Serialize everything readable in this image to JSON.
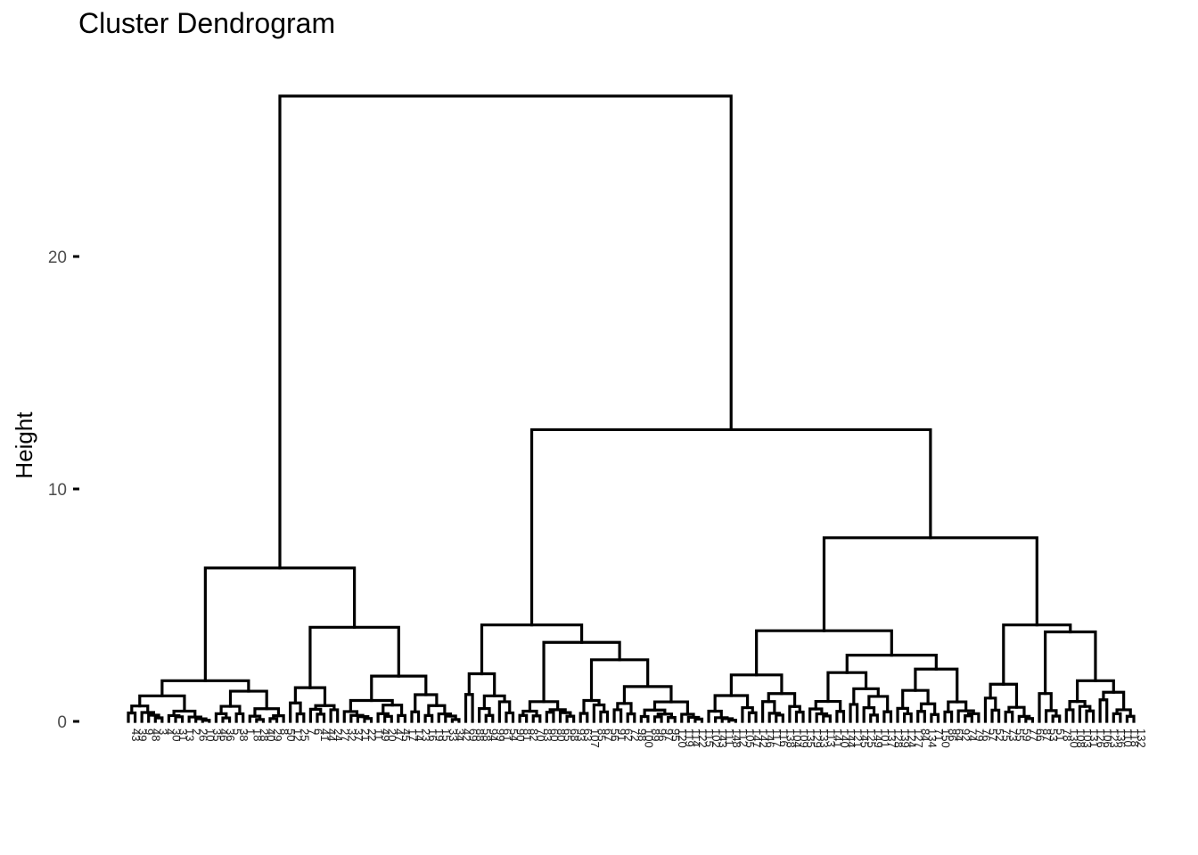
{
  "chart_data": {
    "type": "dendrogram",
    "title": "Cluster Dendrogram",
    "xlabel": "",
    "ylabel": "Height",
    "ylim": [
      0,
      27
    ],
    "yticks": [
      0,
      10,
      20
    ],
    "grid": false,
    "leaf_count": 150,
    "leaves": [
      43,
      39,
      9,
      48,
      3,
      4,
      30,
      31,
      13,
      2,
      26,
      10,
      35,
      46,
      36,
      5,
      38,
      1,
      18,
      28,
      40,
      29,
      8,
      50,
      12,
      25,
      7,
      6,
      41,
      44,
      24,
      27,
      32,
      37,
      21,
      22,
      11,
      49,
      20,
      47,
      45,
      17,
      14,
      23,
      16,
      19,
      15,
      33,
      34,
      42,
      69,
      88,
      58,
      94,
      99,
      61,
      54,
      90,
      81,
      82,
      70,
      83,
      60,
      80,
      65,
      68,
      93,
      63,
      107,
      85,
      67,
      56,
      91,
      62,
      72,
      98,
      100,
      89,
      96,
      97,
      95,
      120,
      119,
      114,
      122,
      115,
      102,
      143,
      111,
      148,
      112,
      105,
      147,
      142,
      146,
      117,
      116,
      138,
      104,
      109,
      135,
      129,
      133,
      113,
      141,
      140,
      144,
      121,
      145,
      125,
      149,
      101,
      137,
      128,
      139,
      124,
      127,
      84,
      134,
      71,
      150,
      86,
      64,
      92,
      74,
      79,
      76,
      57,
      52,
      75,
      73,
      55,
      59,
      77,
      66,
      87,
      53,
      51,
      78,
      130,
      108,
      103,
      131,
      126,
      106,
      123,
      136,
      110,
      118,
      132
    ],
    "merges": [
      {
        "id": "root",
        "height": 26.9,
        "children": [
          "A",
          "B"
        ]
      },
      {
        "id": "A",
        "height": 6.6,
        "children": [
          "A1",
          "A2"
        ]
      },
      {
        "id": "A1",
        "height": 1.75,
        "children": [
          "A1a",
          "A1b"
        ]
      },
      {
        "id": "A2",
        "height": 4.05,
        "children": [
          "A2a",
          "A2b"
        ]
      },
      {
        "id": "A2b",
        "height": 1.95,
        "children": [
          "A2b1",
          "A2b2"
        ]
      },
      {
        "id": "B",
        "height": 12.55,
        "children": [
          "B1",
          "B2"
        ]
      },
      {
        "id": "B1",
        "height": 4.15,
        "children": [
          "B1a",
          "B1b"
        ]
      },
      {
        "id": "B1b",
        "height": 3.4,
        "children": [
          "B1b1",
          "B1b2"
        ]
      },
      {
        "id": "B1b2",
        "height": 2.65,
        "children": [
          "B1b2a",
          "B1b2b"
        ]
      },
      {
        "id": "B2",
        "height": 7.9,
        "children": [
          "B2a",
          "B2b"
        ]
      },
      {
        "id": "B2a",
        "height": 3.9,
        "children": [
          "B2a1",
          "B2a2"
        ]
      },
      {
        "id": "B2a2",
        "height": 2.85,
        "children": [
          "B2a2a",
          "B2a2b"
        ]
      },
      {
        "id": "B2b",
        "height": 4.15,
        "children": [
          "B2b1",
          "B2b2"
        ]
      },
      {
        "id": "B2b2",
        "height": 3.85,
        "children": [
          "B2b2a",
          "B2b2b"
        ]
      }
    ]
  }
}
